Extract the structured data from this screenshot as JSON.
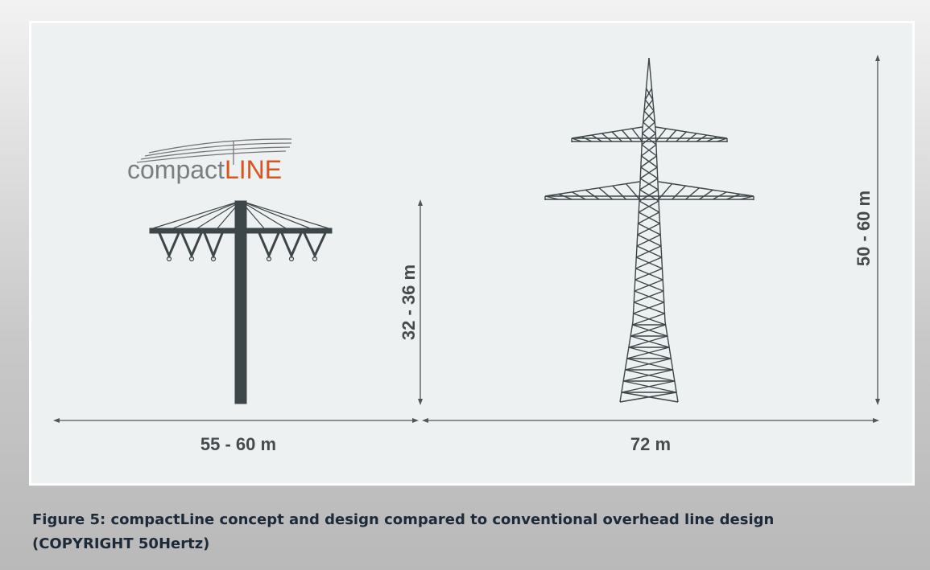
{
  "logo": {
    "prefix": "compact",
    "suffix": "LINE"
  },
  "dimensions": {
    "compact_width": "55 - 60 m",
    "conventional_width": "72 m",
    "compact_height": "32 - 36 m",
    "conventional_height": "50 - 60 m"
  },
  "caption": {
    "lines": [
      "Figure 5: compactLine concept and design compared to conventional overhead line design",
      "(COPYRIGHT 50Hertz)"
    ]
  }
}
